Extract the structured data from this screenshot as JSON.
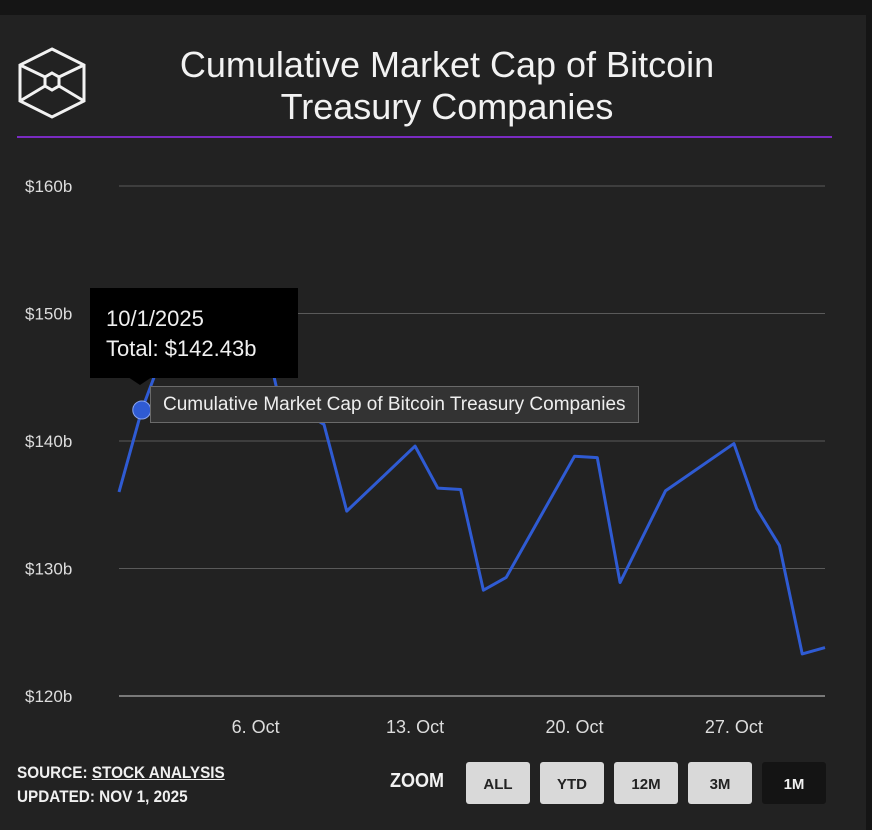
{
  "title": "Cumulative Market Cap of Bitcoin Treasury Companies",
  "title_lines": [
    "Cumulative Market Cap of Bitcoin",
    "Treasury Companies"
  ],
  "logo_icon": "hexagon-cube-icon",
  "colors": {
    "accent_rule": "#7a2bc2",
    "series": "#2f5bd3",
    "background": "#222222"
  },
  "tooltip": {
    "date": "10/1/2025",
    "total": "Total: $142.43b"
  },
  "series_tooltip": "Cumulative Market Cap of Bitcoin Treasury Companies",
  "footer": {
    "source_label": "SOURCE:",
    "source_link": "STOCK ANALYSIS",
    "updated": "UPDATED: NOV 1, 2025"
  },
  "zoom": {
    "label": "ZOOM",
    "buttons": [
      "ALL",
      "YTD",
      "12M",
      "3M",
      "1M"
    ],
    "active": "1M"
  },
  "chart_data": {
    "type": "line",
    "title": "Cumulative Market Cap of Bitcoin Treasury Companies",
    "grid": true,
    "ylim": [
      120,
      160
    ],
    "y_ticks": [
      120,
      130,
      140,
      150,
      160
    ],
    "y_tick_labels": [
      "$120b",
      "$130b",
      "$140b",
      "$150b",
      "$160b"
    ],
    "x_range": [
      "2025-09-30",
      "2025-10-31"
    ],
    "x_ticks": [
      "2025-10-06",
      "2025-10-13",
      "2025-10-20",
      "2025-10-27"
    ],
    "x_tick_labels": [
      "6. Oct",
      "13. Oct",
      "20. Oct",
      "27. Oct"
    ],
    "highlighted_point": {
      "x": "2025-10-01",
      "y": 142.43
    },
    "series": [
      {
        "name": "Cumulative Market Cap of Bitcoin Treasury Companies",
        "x": [
          "2025-09-30",
          "2025-10-01",
          "2025-10-02",
          "2025-10-03",
          "2025-10-06",
          "2025-10-07",
          "2025-10-08",
          "2025-10-09",
          "2025-10-10",
          "2025-10-13",
          "2025-10-14",
          "2025-10-15",
          "2025-10-16",
          "2025-10-17",
          "2025-10-20",
          "2025-10-21",
          "2025-10-22",
          "2025-10-23",
          "2025-10-24",
          "2025-10-27",
          "2025-10-28",
          "2025-10-29",
          "2025-10-30",
          "2025-10-31"
        ],
        "y": [
          136.0,
          142.43,
          147.2,
          150.8,
          151.5,
          143.5,
          142.4,
          141.3,
          134.5,
          139.6,
          136.3,
          136.2,
          128.3,
          129.3,
          138.8,
          138.7,
          128.9,
          132.5,
          136.1,
          139.8,
          134.7,
          131.8,
          123.3,
          123.8
        ]
      }
    ]
  }
}
